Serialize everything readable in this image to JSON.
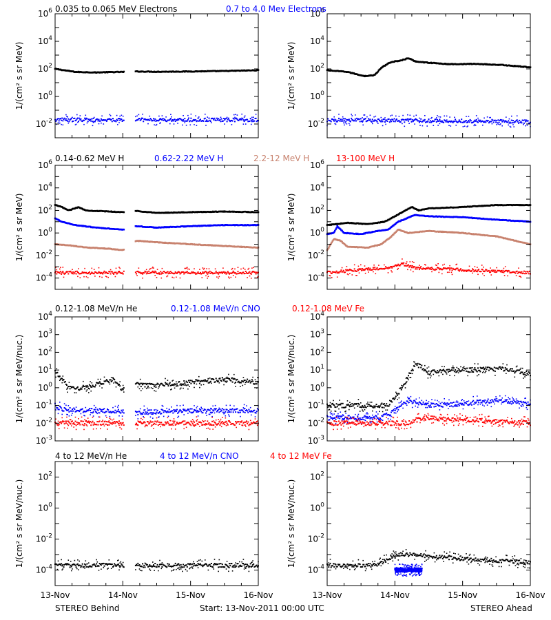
{
  "colors": {
    "black": "#000000",
    "blue": "#0000ff",
    "tan": "#c8826e",
    "red": "#ff0000",
    "background": "#ffffff"
  },
  "x_tick_labels": [
    "13-Nov",
    "14-Nov",
    "15-Nov",
    "16-Nov"
  ],
  "footer": {
    "left": "STEREO Behind",
    "center": "Start: 13-Nov-2011 00:00 UTC",
    "right": "STEREO Ahead"
  },
  "panel_titles": {
    "electrons": [
      {
        "text": "0.035 to 0.065 MeV Electrons",
        "color": "black"
      },
      {
        "text": "0.7 to 4.0 Mev Electrons",
        "color": "blue"
      }
    ],
    "protons": [
      {
        "text": "0.14-0.62 MeV H",
        "color": "black"
      },
      {
        "text": "0.62-2.22 MeV H",
        "color": "blue"
      },
      {
        "text": "2.2-12 MeV H",
        "color": "tan"
      },
      {
        "text": "13-100 MeV H",
        "color": "red"
      }
    ],
    "ions_low": [
      {
        "text": "0.12-1.08 MeV/n He",
        "color": "black"
      },
      {
        "text": "0.12-1.08 MeV/n CNO",
        "color": "blue"
      },
      {
        "text": "0.12-1.08 MeV Fe",
        "color": "red"
      }
    ],
    "ions_high": [
      {
        "text": "4 to 12 MeV/n He",
        "color": "black"
      },
      {
        "text": "4 to 12 MeV/n CNO",
        "color": "blue"
      },
      {
        "text": "4 to 12 MeV Fe",
        "color": "red"
      }
    ]
  },
  "chart_data": [
    {
      "id": "electrons-behind",
      "type": "scatter",
      "row": 0,
      "col": 0,
      "ylabel": "1/(cm² s sr MeV)",
      "y_scale": "log",
      "ylim_exp": [
        -3,
        6
      ],
      "tick_exps": [
        -2,
        0,
        2,
        4,
        6
      ],
      "x_range_days": [
        0,
        3
      ],
      "data_gap_days": [
        1.02,
        1.18
      ],
      "series": [
        {
          "color": "black",
          "style": "line",
          "points": [
            [
              0,
              100
            ],
            [
              0.3,
              60
            ],
            [
              0.6,
              55
            ],
            [
              0.8,
              58
            ],
            [
              1.0,
              60
            ],
            [
              1.2,
              65
            ],
            [
              1.5,
              62
            ],
            [
              2.0,
              65
            ],
            [
              2.5,
              70
            ],
            [
              3.0,
              80
            ]
          ]
        },
        {
          "color": "blue",
          "style": "scatter",
          "points": [
            [
              0,
              0.02
            ],
            [
              3.0,
              0.02
            ]
          ]
        }
      ]
    },
    {
      "id": "electrons-ahead",
      "type": "scatter",
      "row": 0,
      "col": 1,
      "ylabel": "1/(cm² s sr MeV)",
      "y_scale": "log",
      "ylim_exp": [
        -3,
        6
      ],
      "tick_exps": [
        -2,
        0,
        2,
        4,
        6
      ],
      "x_range_days": [
        0,
        3
      ],
      "series": [
        {
          "color": "black",
          "style": "line",
          "points": [
            [
              0,
              80
            ],
            [
              0.3,
              60
            ],
            [
              0.55,
              30
            ],
            [
              0.7,
              35
            ],
            [
              0.8,
              120
            ],
            [
              0.9,
              250
            ],
            [
              1.0,
              350
            ],
            [
              1.1,
              420
            ],
            [
              1.2,
              600
            ],
            [
              1.3,
              350
            ],
            [
              1.5,
              280
            ],
            [
              1.8,
              220
            ],
            [
              2.2,
              230
            ],
            [
              2.6,
              190
            ],
            [
              3.0,
              130
            ]
          ]
        },
        {
          "color": "blue",
          "style": "scatter",
          "points": [
            [
              0,
              0.02
            ],
            [
              3.0,
              0.015
            ]
          ]
        }
      ]
    },
    {
      "id": "protons-behind",
      "type": "scatter",
      "row": 1,
      "col": 0,
      "ylabel": "1/(cm² s sr MeV)",
      "y_scale": "log",
      "ylim_exp": [
        -5,
        6
      ],
      "tick_exps": [
        -4,
        -2,
        0,
        2,
        4,
        6
      ],
      "x_range_days": [
        0,
        3
      ],
      "data_gap_days": [
        1.02,
        1.18
      ],
      "series": [
        {
          "color": "black",
          "style": "line",
          "points": [
            [
              0,
              300
            ],
            [
              0.1,
              200
            ],
            [
              0.2,
              100
            ],
            [
              0.35,
              200
            ],
            [
              0.45,
              100
            ],
            [
              0.6,
              90
            ],
            [
              0.8,
              80
            ],
            [
              1.0,
              70
            ],
            [
              1.2,
              90
            ],
            [
              1.5,
              60
            ],
            [
              2.0,
              70
            ],
            [
              2.5,
              80
            ],
            [
              3.0,
              70
            ]
          ]
        },
        {
          "color": "blue",
          "style": "line",
          "points": [
            [
              0,
              20
            ],
            [
              0.1,
              10
            ],
            [
              0.3,
              5
            ],
            [
              0.6,
              3
            ],
            [
              1.0,
              2
            ],
            [
              1.2,
              4
            ],
            [
              1.5,
              3
            ],
            [
              2.0,
              4
            ],
            [
              2.5,
              5
            ],
            [
              3.0,
              5
            ]
          ]
        },
        {
          "color": "tan",
          "style": "line",
          "points": [
            [
              0,
              0.1
            ],
            [
              0.2,
              0.08
            ],
            [
              0.5,
              0.05
            ],
            [
              0.8,
              0.04
            ],
            [
              1.0,
              0.03
            ],
            [
              1.2,
              0.2
            ],
            [
              1.5,
              0.15
            ],
            [
              2.0,
              0.1
            ],
            [
              2.5,
              0.07
            ],
            [
              3.0,
              0.05
            ]
          ]
        },
        {
          "color": "red",
          "style": "scatter",
          "points": [
            [
              0,
              0.0003
            ],
            [
              3.0,
              0.0003
            ]
          ]
        }
      ]
    },
    {
      "id": "protons-ahead",
      "type": "scatter",
      "row": 1,
      "col": 1,
      "ylabel": "1/(cm² s sr MeV)",
      "y_scale": "log",
      "ylim_exp": [
        -5,
        6
      ],
      "tick_exps": [
        -4,
        -2,
        0,
        2,
        4,
        6
      ],
      "x_range_days": [
        0,
        3
      ],
      "series": [
        {
          "color": "black",
          "style": "line",
          "points": [
            [
              0,
              5
            ],
            [
              0.3,
              8
            ],
            [
              0.6,
              6
            ],
            [
              0.85,
              10
            ],
            [
              1.0,
              30
            ],
            [
              1.15,
              100
            ],
            [
              1.25,
              200
            ],
            [
              1.35,
              100
            ],
            [
              1.5,
              150
            ],
            [
              2.0,
              200
            ],
            [
              2.5,
              300
            ],
            [
              3.0,
              300
            ]
          ]
        },
        {
          "color": "blue",
          "style": "line",
          "points": [
            [
              0,
              0.8
            ],
            [
              0.1,
              1
            ],
            [
              0.15,
              4
            ],
            [
              0.25,
              1
            ],
            [
              0.5,
              0.8
            ],
            [
              0.75,
              1.5
            ],
            [
              0.9,
              2
            ],
            [
              1.05,
              10
            ],
            [
              1.3,
              40
            ],
            [
              1.5,
              30
            ],
            [
              2.0,
              25
            ],
            [
              2.5,
              15
            ],
            [
              3.0,
              10
            ]
          ]
        },
        {
          "color": "tan",
          "style": "line",
          "points": [
            [
              0,
              0.03
            ],
            [
              0.1,
              0.3
            ],
            [
              0.2,
              0.2
            ],
            [
              0.3,
              0.06
            ],
            [
              0.6,
              0.05
            ],
            [
              0.8,
              0.1
            ],
            [
              0.95,
              0.5
            ],
            [
              1.05,
              2
            ],
            [
              1.2,
              1
            ],
            [
              1.5,
              1.5
            ],
            [
              2.0,
              1
            ],
            [
              2.5,
              0.5
            ],
            [
              3.0,
              0.1
            ]
          ]
        },
        {
          "color": "red",
          "style": "scatter",
          "points": [
            [
              0,
              0.0003
            ],
            [
              1.0,
              0.001
            ],
            [
              1.1,
              0.002
            ],
            [
              1.3,
              0.0008
            ],
            [
              3.0,
              0.0003
            ]
          ]
        }
      ]
    },
    {
      "id": "ions-low-behind",
      "type": "scatter",
      "row": 2,
      "col": 0,
      "ylabel": "1/(cm² s sr MeV/nuc.)",
      "y_scale": "log",
      "ylim_exp": [
        -3,
        4
      ],
      "tick_exps": [
        -3,
        -2,
        -1,
        0,
        1,
        2,
        3,
        4
      ],
      "x_range_days": [
        0,
        3
      ],
      "data_gap_days": [
        1.02,
        1.18
      ],
      "series": [
        {
          "color": "black",
          "style": "scatter",
          "points": [
            [
              0,
              8
            ],
            [
              0.1,
              3
            ],
            [
              0.2,
              1
            ],
            [
              0.3,
              0.8
            ],
            [
              0.5,
              1.2
            ],
            [
              0.7,
              2
            ],
            [
              0.85,
              3
            ],
            [
              1.0,
              0.8
            ],
            [
              1.2,
              1.5
            ],
            [
              1.5,
              1.3
            ],
            [
              2.0,
              2
            ],
            [
              2.5,
              3
            ],
            [
              3.0,
              2
            ]
          ]
        },
        {
          "color": "blue",
          "style": "scatter",
          "points": [
            [
              0,
              0.1
            ],
            [
              0.1,
              0.06
            ],
            [
              0.6,
              0.05
            ],
            [
              1.2,
              0.04
            ],
            [
              2.0,
              0.05
            ],
            [
              3.0,
              0.05
            ]
          ]
        },
        {
          "color": "red",
          "style": "scatter",
          "points": [
            [
              0,
              0.01
            ],
            [
              3.0,
              0.01
            ]
          ]
        }
      ]
    },
    {
      "id": "ions-low-ahead",
      "type": "scatter",
      "row": 2,
      "col": 1,
      "ylabel": "1/(cm² s sr MeV/nuc.)",
      "y_scale": "log",
      "ylim_exp": [
        -3,
        4
      ],
      "tick_exps": [
        -3,
        -2,
        -1,
        0,
        1,
        2,
        3,
        4
      ],
      "x_range_days": [
        0,
        3
      ],
      "series": [
        {
          "color": "black",
          "style": "scatter",
          "points": [
            [
              0,
              0.1
            ],
            [
              0.5,
              0.1
            ],
            [
              0.9,
              0.1
            ],
            [
              1.05,
              0.5
            ],
            [
              1.15,
              2
            ],
            [
              1.3,
              20
            ],
            [
              1.4,
              15
            ],
            [
              1.5,
              7
            ],
            [
              1.8,
              10
            ],
            [
              2.2,
              10
            ],
            [
              2.6,
              12
            ],
            [
              3.0,
              6
            ]
          ]
        },
        {
          "color": "blue",
          "style": "scatter",
          "points": [
            [
              0,
              0.02
            ],
            [
              0.8,
              0.02
            ],
            [
              1.0,
              0.05
            ],
            [
              1.2,
              0.2
            ],
            [
              1.5,
              0.1
            ],
            [
              2.0,
              0.12
            ],
            [
              2.5,
              0.2
            ],
            [
              3.0,
              0.12
            ]
          ]
        },
        {
          "color": "red",
          "style": "scatter",
          "points": [
            [
              0,
              0.01
            ],
            [
              1.2,
              0.01
            ],
            [
              1.4,
              0.02
            ],
            [
              3.0,
              0.01
            ]
          ]
        }
      ]
    },
    {
      "id": "ions-high-behind",
      "type": "scatter",
      "row": 3,
      "col": 0,
      "ylabel": "1/(cm² s sr MeV/nuc.)",
      "y_scale": "log",
      "ylim_exp": [
        -5,
        3
      ],
      "tick_exps": [
        -4,
        -2,
        0,
        2
      ],
      "x_range_days": [
        0,
        3
      ],
      "data_gap_days": [
        1.02,
        1.18
      ],
      "series": [
        {
          "color": "black",
          "style": "scatter",
          "points": [
            [
              0,
              0.0002
            ],
            [
              3.0,
              0.0002
            ]
          ]
        },
        {
          "color": "blue",
          "style": "scatter",
          "points": []
        },
        {
          "color": "red",
          "style": "scatter",
          "points": []
        }
      ]
    },
    {
      "id": "ions-high-ahead",
      "type": "scatter",
      "row": 3,
      "col": 1,
      "ylabel": "1/(cm² s sr MeV/nuc.)",
      "y_scale": "log",
      "ylim_exp": [
        -5,
        3
      ],
      "tick_exps": [
        -4,
        -2,
        0,
        2
      ],
      "x_range_days": [
        0,
        3
      ],
      "series": [
        {
          "color": "black",
          "style": "scatter",
          "points": [
            [
              0,
              0.0002
            ],
            [
              0.7,
              0.0002
            ],
            [
              0.9,
              0.0005
            ],
            [
              1.05,
              0.001
            ],
            [
              1.3,
              0.001
            ],
            [
              1.8,
              0.0006
            ],
            [
              2.5,
              0.0004
            ],
            [
              3.0,
              0.0003
            ]
          ]
        },
        {
          "color": "blue",
          "style": "scatter",
          "points": [
            [
              1.0,
              0.0001
            ],
            [
              1.4,
              0.0001
            ]
          ]
        },
        {
          "color": "red",
          "style": "scatter",
          "points": []
        }
      ]
    }
  ]
}
